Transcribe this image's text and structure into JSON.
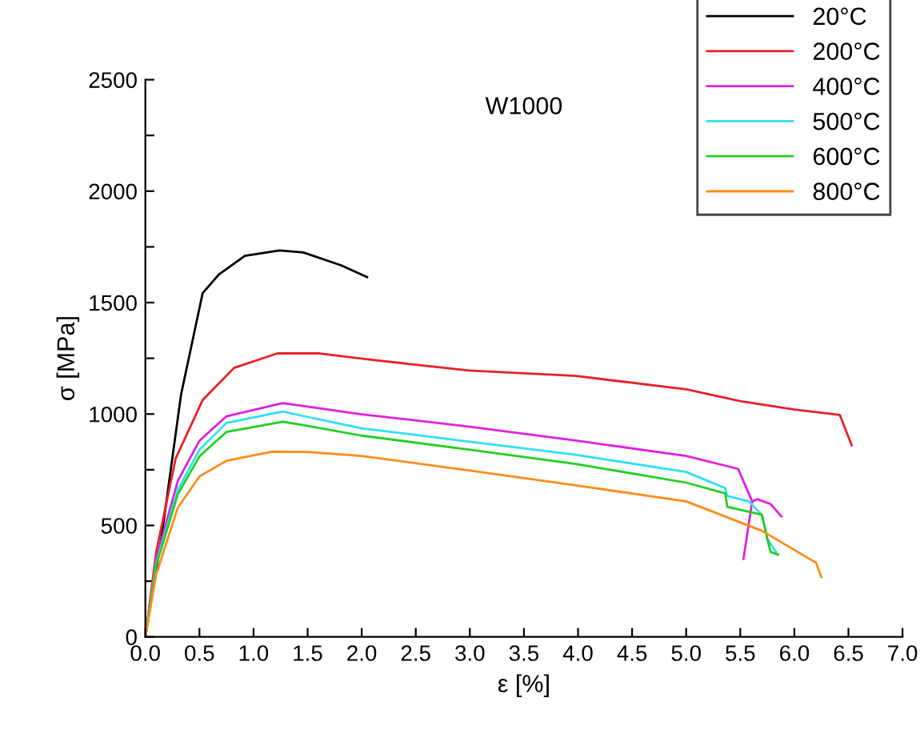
{
  "chart_data": {
    "type": "line",
    "title": "W1000",
    "xlabel": "ε [%]",
    "ylabel": "σ [MPa]",
    "xlim": [
      0,
      7
    ],
    "ylim": [
      0,
      2500
    ],
    "xticks": [
      {
        "value": 0,
        "label": "0.0"
      },
      {
        "value": 0.5,
        "label": "0.5"
      },
      {
        "value": 1,
        "label": "1.0"
      },
      {
        "value": 1.5,
        "label": "1.5"
      },
      {
        "value": 2,
        "label": "2.0"
      },
      {
        "value": 2.5,
        "label": "2.5"
      },
      {
        "value": 3,
        "label": "3.0"
      },
      {
        "value": 3.5,
        "label": "3.5"
      },
      {
        "value": 4,
        "label": "4.0"
      },
      {
        "value": 4.5,
        "label": "4.5"
      },
      {
        "value": 5,
        "label": "5.0"
      },
      {
        "value": 5.5,
        "label": "5.5"
      },
      {
        "value": 6,
        "label": "6.0"
      },
      {
        "value": 6.5,
        "label": "6.5"
      },
      {
        "value": 7,
        "label": "7.0"
      }
    ],
    "yticks": [
      0,
      {
        "value": 250,
        "label": null
      },
      500,
      {
        "value": 750,
        "label": null
      },
      1000,
      {
        "value": 1250,
        "label": null
      },
      1500,
      {
        "value": 1750,
        "label": null
      },
      2000,
      {
        "value": 2250,
        "label": null
      },
      2500
    ],
    "grid": false,
    "legend": "top right",
    "marker": "none",
    "line_style": "solid",
    "series": [
      {
        "name": "20°C",
        "color": "#000000",
        "x": [
          0,
          0.15,
          0.33,
          0.53,
          0.68,
          0.92,
          1.24,
          1.46,
          1.81,
          2.05
        ],
        "values": [
          0,
          450,
          1087,
          1543,
          1626,
          1710,
          1734,
          1725,
          1667,
          1614
        ]
      },
      {
        "name": "200°C",
        "color": "#e8202a",
        "x": [
          0,
          0.1,
          0.28,
          0.53,
          0.82,
          1.22,
          1.61,
          2.1,
          2.99,
          3.98,
          5.0,
          5.5,
          6.0,
          6.42,
          6.53
        ],
        "values": [
          0,
          380,
          800,
          1063,
          1207,
          1272,
          1272,
          1243,
          1195,
          1171,
          1111,
          1058,
          1020,
          996,
          860
        ]
      },
      {
        "name": "400°C",
        "color": "#e020e0",
        "x": [
          0,
          0.1,
          0.3,
          0.5,
          0.75,
          1.27,
          2.0,
          3.0,
          3.98,
          5.0,
          5.48,
          5.61,
          5.66,
          5.78,
          5.88,
          5.7,
          5.53,
          5.61
        ],
        "values": [
          0,
          350,
          700,
          880,
          990,
          1049,
          999,
          943,
          881,
          812,
          754,
          608,
          618,
          596,
          541,
          null,
          350,
          608
        ]
      },
      {
        "name": "500°C",
        "color": "#30e0f0",
        "x": [
          0,
          0.1,
          0.3,
          0.5,
          0.75,
          1.27,
          1.46,
          2.0,
          3.0,
          3.98,
          5.0,
          5.36,
          5.38,
          5.58,
          5.7,
          5.75,
          5.83
        ],
        "values": [
          0,
          330,
          660,
          840,
          960,
          1011,
          991,
          936,
          876,
          817,
          740,
          668,
          632,
          608,
          548,
          440,
          381
        ]
      },
      {
        "name": "600°C",
        "color": "#20d020",
        "x": [
          0,
          0.1,
          0.3,
          0.5,
          0.75,
          1.27,
          1.46,
          2.0,
          3.0,
          3.98,
          5.0,
          5.36,
          5.38,
          5.7,
          5.75,
          5.78,
          5.85
        ],
        "values": [
          0,
          320,
          640,
          810,
          920,
          965,
          950,
          903,
          840,
          776,
          692,
          644,
          584,
          548,
          440,
          381,
          369
        ]
      },
      {
        "name": "800°C",
        "color": "#ff8c1a",
        "x": [
          0,
          0.1,
          0.3,
          0.5,
          0.75,
          1.17,
          1.5,
          2.0,
          3.0,
          3.98,
          5.0,
          5.7,
          6.2,
          6.25
        ],
        "values": [
          0,
          280,
          580,
          720,
          790,
          831,
          830,
          812,
          746,
          680,
          608,
          476,
          333,
          268
        ]
      }
    ]
  }
}
